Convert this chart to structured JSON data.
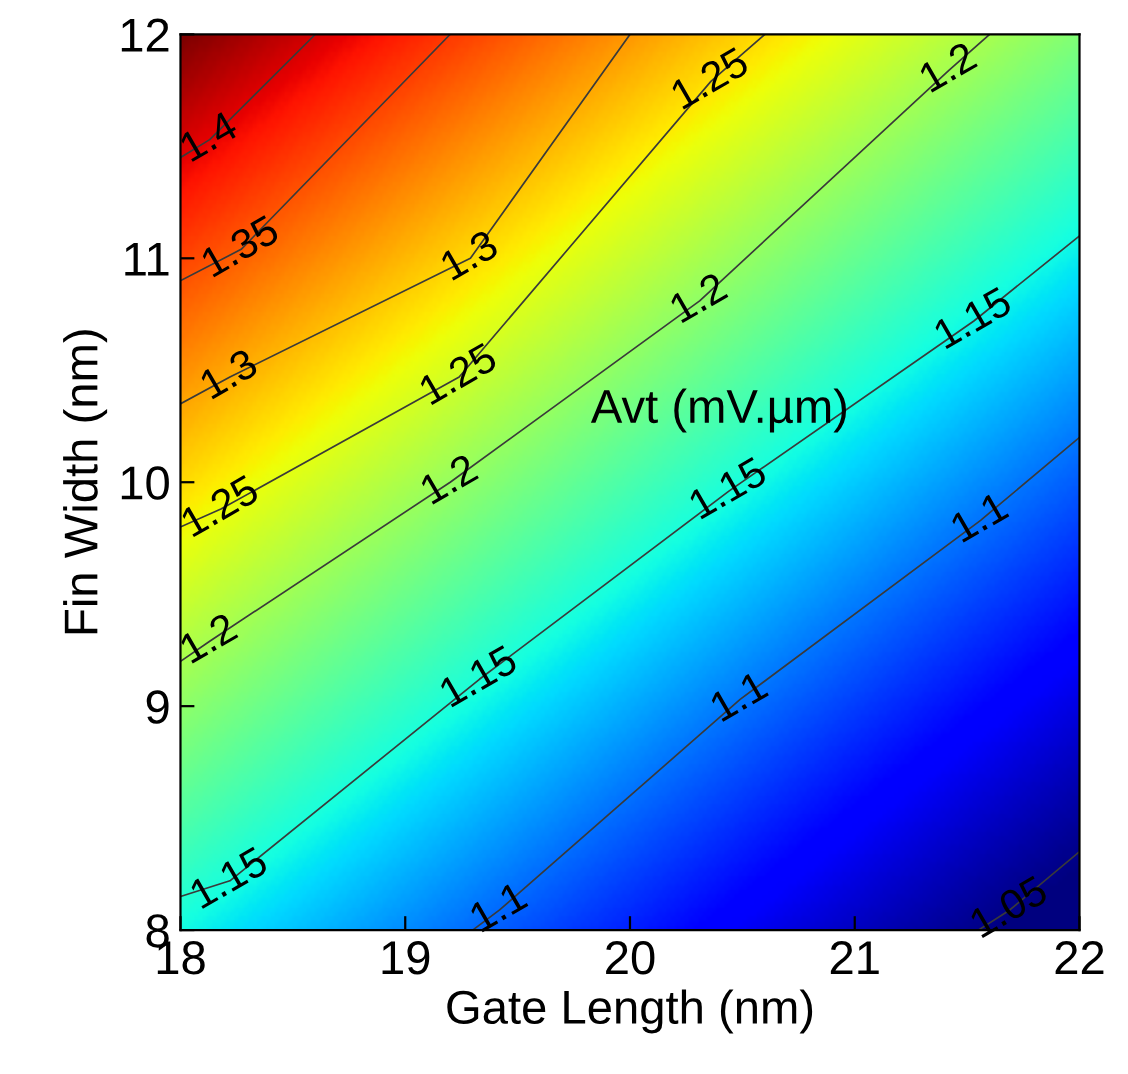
{
  "chart_data": {
    "type": "line",
    "xlabel": "Gate Length (nm)",
    "ylabel": "Fin Width (nm)",
    "xlim": [
      18,
      22
    ],
    "xticks": [
      18,
      19,
      20,
      21,
      22
    ],
    "ylim": [
      8,
      12
    ],
    "yticks": [
      8,
      9,
      10,
      11,
      12
    ],
    "series": [
      {
        "color": "#3a3a3a",
        "x": [
          18,
          18.13,
          18.6
        ],
        "values": [
          11.45,
          11.53,
          12
        ]
      },
      {
        "color": "#3a3a3a",
        "x": [
          18,
          18.27,
          19.2
        ],
        "values": [
          10.9,
          11.04,
          12
        ]
      },
      {
        "color": "#3a3a3a",
        "x": [
          18,
          18.22,
          19.29,
          20.0
        ],
        "values": [
          10.35,
          10.47,
          11.0,
          12
        ]
      },
      {
        "color": "#3a3a3a",
        "x": [
          18,
          18.18,
          19.24,
          20.36,
          20.6
        ],
        "values": [
          9.8,
          9.88,
          10.47,
          11.79,
          12
        ]
      },
      {
        "color": "#3a3a3a",
        "x": [
          18,
          18.13,
          19.2,
          20.31,
          21.42,
          21.6
        ],
        "values": [
          9.2,
          9.29,
          10.0,
          10.81,
          11.84,
          12
        ]
      },
      {
        "color": "#3a3a3a",
        "x": [
          18,
          18.22,
          19.33,
          20.44,
          21.53,
          22
        ],
        "values": [
          8.15,
          8.22,
          9.12,
          9.96,
          10.72,
          11.1
        ]
      },
      {
        "color": "#3a3a3a",
        "x": [
          19.3,
          19.42,
          20.49,
          21.56,
          22
        ],
        "values": [
          8,
          8.09,
          9.03,
          9.83,
          10.2
        ]
      },
      {
        "color": "#3a3a3a",
        "x": [
          21.55,
          21.69,
          22
        ],
        "values": [
          8,
          8.09,
          8.35
        ]
      }
    ],
    "annotations": [
      "Avt (mV.µm)",
      {
        "text": "1.4",
        "x": 18.13,
        "y": 11.53
      },
      {
        "text": "1.35",
        "x": 18.27,
        "y": 11.04
      },
      {
        "text": "1.3",
        "x": 18.22,
        "y": 10.47
      },
      {
        "text": "1.25",
        "x": 18.18,
        "y": 9.88
      },
      {
        "text": "1.2",
        "x": 18.13,
        "y": 9.29
      },
      {
        "text": "1.15",
        "x": 18.22,
        "y": 8.22
      },
      {
        "text": "1.3",
        "x": 19.29,
        "y": 11.0
      },
      {
        "text": "1.25",
        "x": 19.24,
        "y": 10.47
      },
      {
        "text": "1.2",
        "x": 19.2,
        "y": 10.0
      },
      {
        "text": "1.15",
        "x": 19.33,
        "y": 9.12
      },
      {
        "text": "1.1",
        "x": 19.42,
        "y": 8.09
      },
      {
        "text": "1.25",
        "x": 20.36,
        "y": 11.79
      },
      {
        "text": "1.2",
        "x": 20.31,
        "y": 10.81
      },
      {
        "text": "1.15",
        "x": 20.44,
        "y": 9.96
      },
      {
        "text": "1.1",
        "x": 20.49,
        "y": 9.03
      },
      {
        "text": "1.2",
        "x": 21.42,
        "y": 11.84
      },
      {
        "text": "1.15",
        "x": 21.53,
        "y": 10.72
      },
      {
        "text": "1.1",
        "x": 21.56,
        "y": 9.83
      },
      {
        "text": "1.05",
        "x": 21.69,
        "y": 8.09
      }
    ]
  }
}
